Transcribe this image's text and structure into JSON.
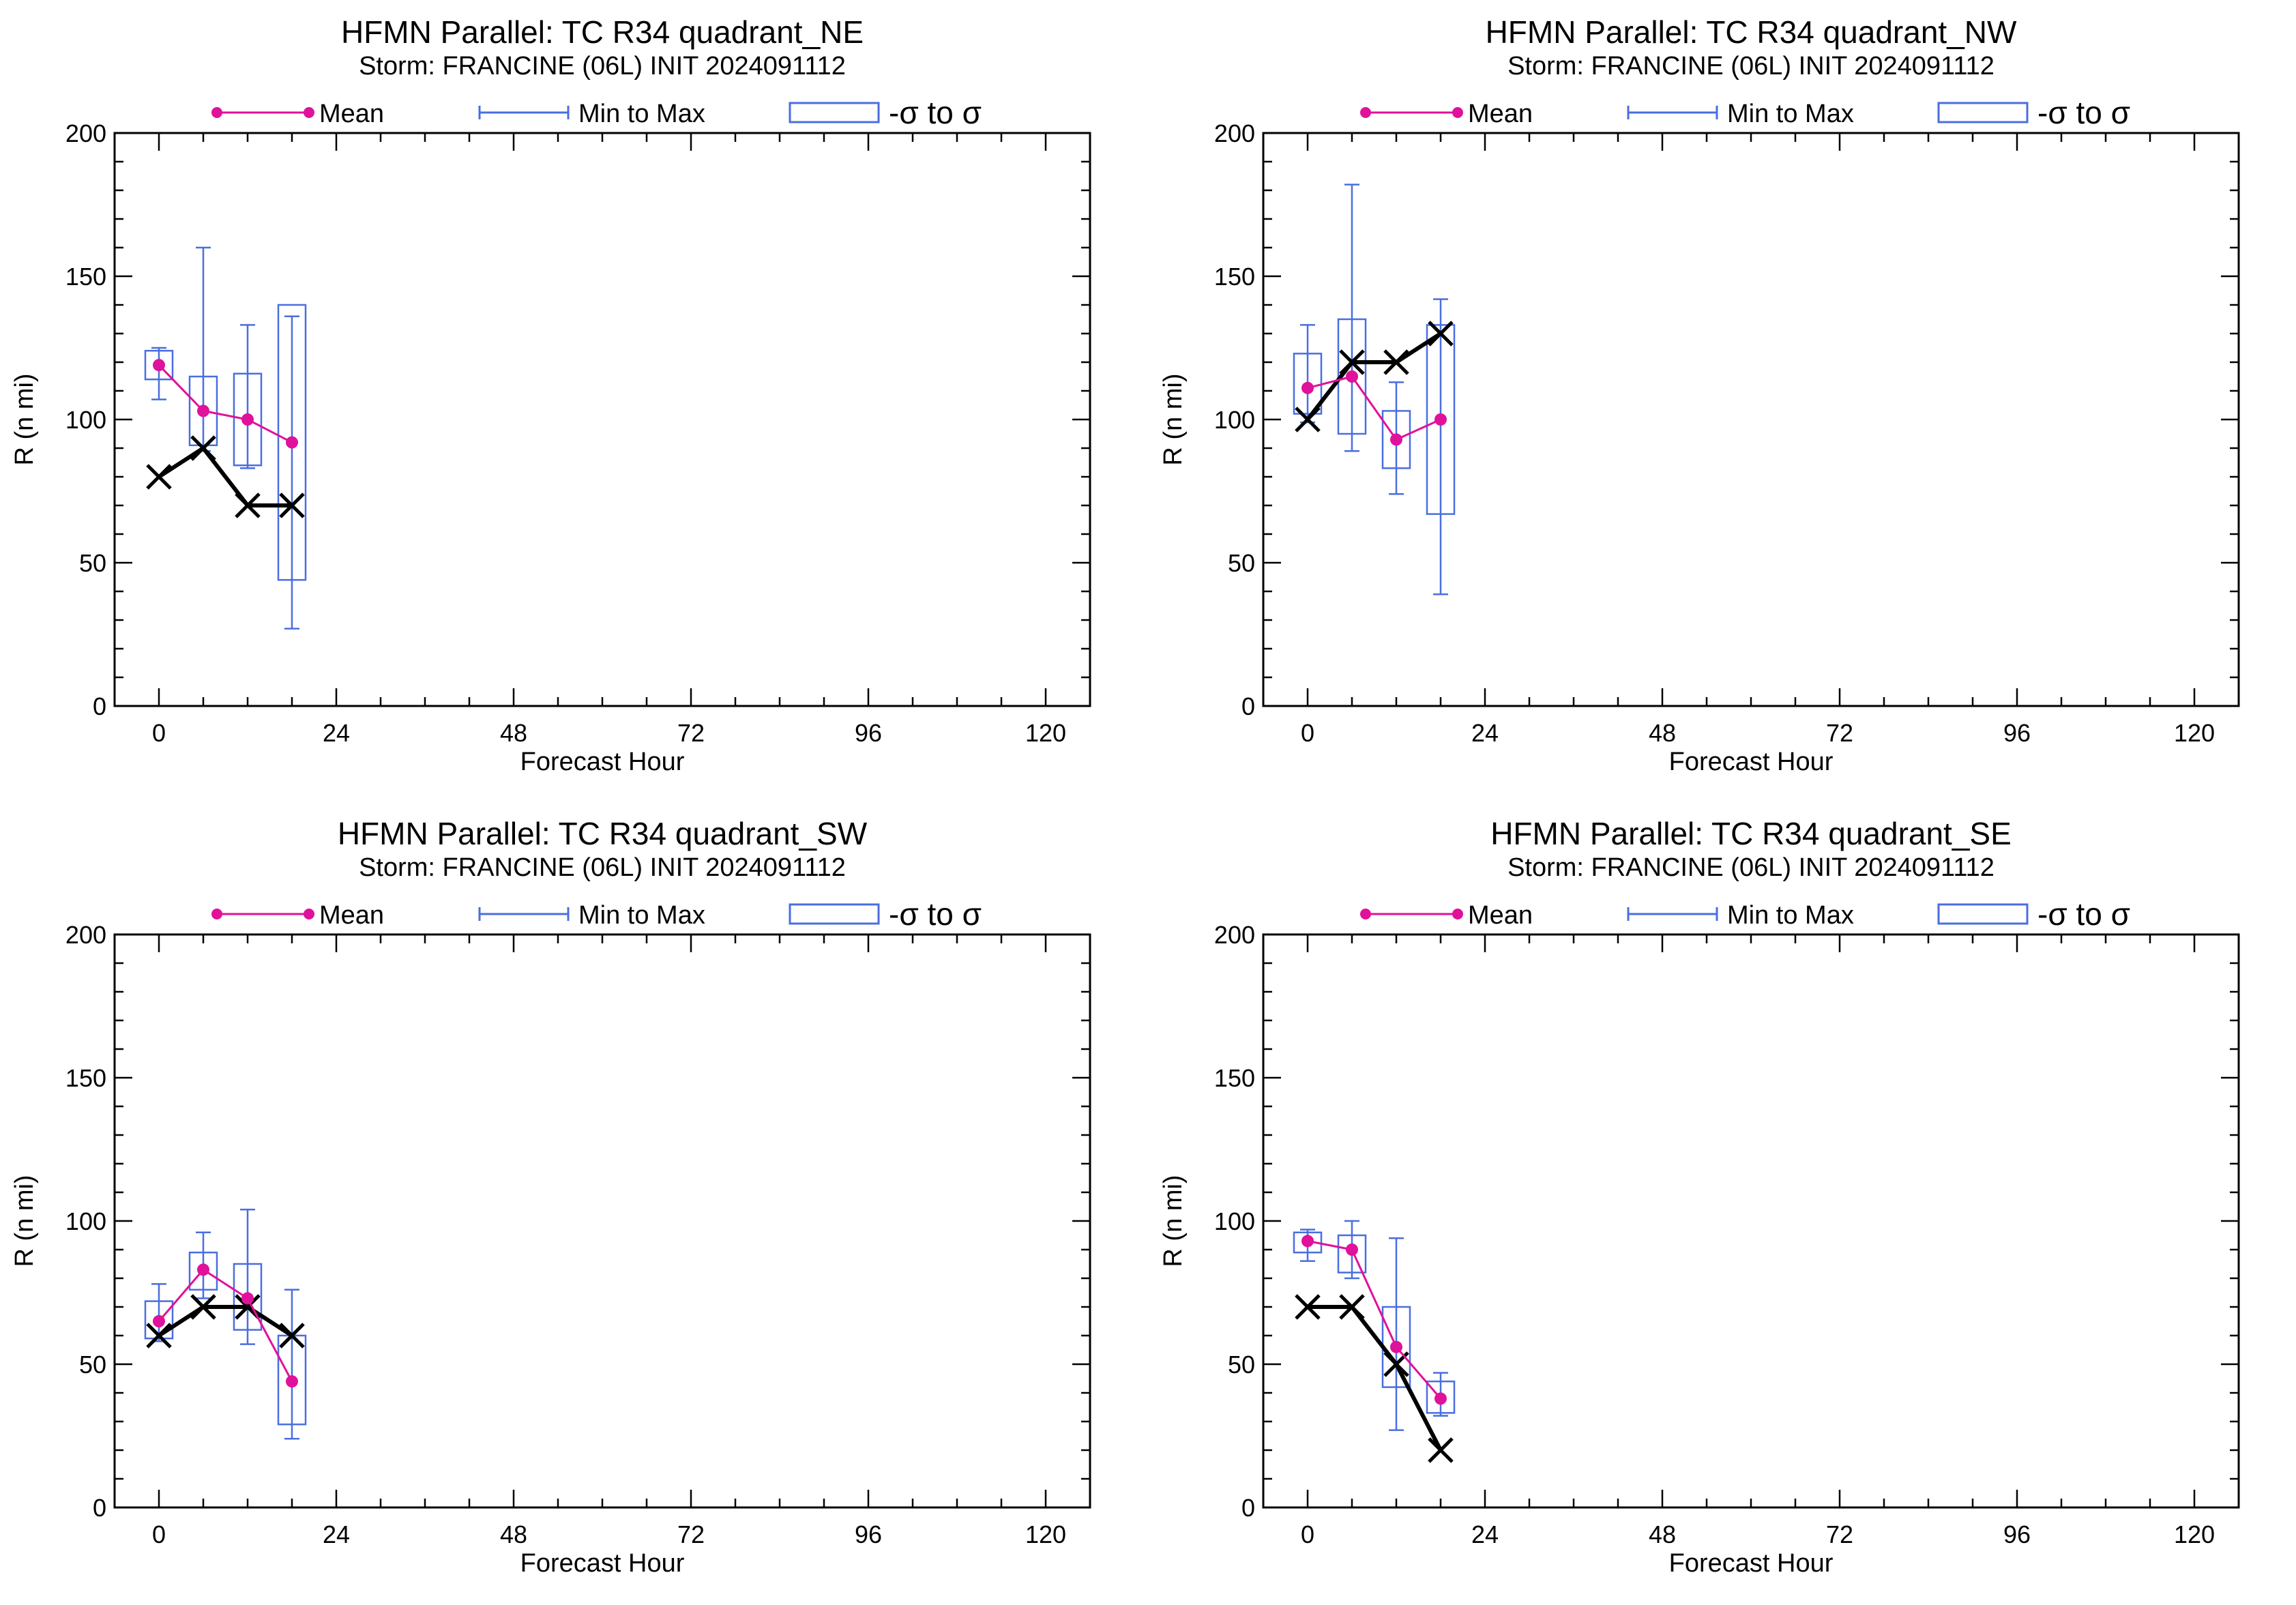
{
  "colors": {
    "mean": "#e0119a",
    "range": "#4a6ee0",
    "observed": "#000000",
    "axis": "#000000",
    "background": "#ffffff"
  },
  "legend": {
    "mean_label": "Mean",
    "range_label": "Min to Max",
    "sigma_label": "-σ to σ"
  },
  "chart_data": [
    {
      "type": "line",
      "title": "HFMN Parallel: TC  R34 quadrant_NE",
      "subtitle": "Storm: FRANCINE (06L) INIT 2024091112",
      "xlabel": "Forecast Hour",
      "ylabel": "R (n mi)",
      "xlim": [
        -6,
        126
      ],
      "ylim": [
        0,
        200
      ],
      "xticks": [
        0,
        24,
        48,
        72,
        96,
        120
      ],
      "yticks": [
        0,
        50,
        100,
        150,
        200
      ],
      "legend_position": "top",
      "series": [
        {
          "name": "Mean",
          "x": [
            0,
            6,
            12,
            18
          ],
          "values": [
            119,
            103,
            100,
            92
          ]
        },
        {
          "name": "Min to Max",
          "x": [
            0,
            6,
            12,
            18
          ],
          "min": [
            107,
            89,
            83,
            27
          ],
          "max": [
            125,
            160,
            133,
            136
          ]
        },
        {
          "name": "-σ to σ",
          "x": [
            0,
            6,
            12,
            18
          ],
          "low": [
            114,
            91,
            84,
            44
          ],
          "high": [
            124,
            115,
            116,
            140
          ]
        },
        {
          "x": [
            0,
            6,
            12,
            18
          ],
          "values": [
            80,
            90,
            70,
            70
          ]
        }
      ]
    },
    {
      "type": "line",
      "title": "HFMN Parallel: TC  R34 quadrant_NW",
      "subtitle": "Storm: FRANCINE (06L) INIT 2024091112",
      "xlabel": "Forecast Hour",
      "ylabel": "R (n mi)",
      "xlim": [
        -6,
        126
      ],
      "ylim": [
        0,
        200
      ],
      "xticks": [
        0,
        24,
        48,
        72,
        96,
        120
      ],
      "yticks": [
        0,
        50,
        100,
        150,
        200
      ],
      "legend_position": "top",
      "series": [
        {
          "name": "Mean",
          "x": [
            0,
            6,
            12,
            18
          ],
          "values": [
            111,
            115,
            93,
            100
          ]
        },
        {
          "name": "Min to Max",
          "x": [
            0,
            6,
            12,
            18
          ],
          "min": [
            99,
            89,
            74,
            39
          ],
          "max": [
            133,
            182,
            113,
            142
          ]
        },
        {
          "name": "-σ to σ",
          "x": [
            0,
            6,
            12,
            18
          ],
          "low": [
            102,
            95,
            83,
            67
          ],
          "high": [
            123,
            135,
            103,
            133
          ]
        },
        {
          "x": [
            0,
            6,
            12,
            18
          ],
          "values": [
            100,
            120,
            120,
            130
          ]
        }
      ]
    },
    {
      "type": "line",
      "title": "HFMN Parallel: TC  R34 quadrant_SW",
      "subtitle": "Storm: FRANCINE (06L) INIT 2024091112",
      "xlabel": "Forecast Hour",
      "ylabel": "R (n mi)",
      "xlim": [
        -6,
        126
      ],
      "ylim": [
        0,
        200
      ],
      "xticks": [
        0,
        24,
        48,
        72,
        96,
        120
      ],
      "yticks": [
        0,
        50,
        100,
        150,
        200
      ],
      "legend_position": "top",
      "series": [
        {
          "name": "Mean",
          "x": [
            0,
            6,
            12,
            18
          ],
          "values": [
            65,
            83,
            73,
            44
          ]
        },
        {
          "name": "Min to Max",
          "x": [
            0,
            6,
            12,
            18
          ],
          "min": [
            58,
            73,
            57,
            24
          ],
          "max": [
            78,
            96,
            104,
            76
          ]
        },
        {
          "name": "-σ to σ",
          "x": [
            0,
            6,
            12,
            18
          ],
          "low": [
            59,
            76,
            62,
            29
          ],
          "high": [
            72,
            89,
            85,
            60
          ]
        },
        {
          "x": [
            0,
            6,
            12,
            18
          ],
          "values": [
            60,
            70,
            70,
            60
          ]
        }
      ]
    },
    {
      "type": "line",
      "title": "HFMN Parallel: TC  R34 quadrant_SE",
      "subtitle": "Storm: FRANCINE (06L) INIT 2024091112",
      "xlabel": "Forecast Hour",
      "ylabel": "R (n mi)",
      "xlim": [
        -6,
        126
      ],
      "ylim": [
        0,
        200
      ],
      "xticks": [
        0,
        24,
        48,
        72,
        96,
        120
      ],
      "yticks": [
        0,
        50,
        100,
        150,
        200
      ],
      "legend_position": "top",
      "series": [
        {
          "name": "Mean",
          "x": [
            0,
            6,
            12,
            18
          ],
          "values": [
            93,
            90,
            56,
            38
          ]
        },
        {
          "name": "Min to Max",
          "x": [
            0,
            6,
            12,
            18
          ],
          "min": [
            86,
            80,
            27,
            32
          ],
          "max": [
            97,
            100,
            94,
            47
          ]
        },
        {
          "name": "-σ to σ",
          "x": [
            0,
            6,
            12,
            18
          ],
          "low": [
            89,
            82,
            42,
            33
          ],
          "high": [
            96,
            95,
            70,
            44
          ]
        },
        {
          "x": [
            0,
            6,
            12,
            18
          ],
          "values": [
            70,
            70,
            50,
            20
          ]
        }
      ]
    }
  ]
}
